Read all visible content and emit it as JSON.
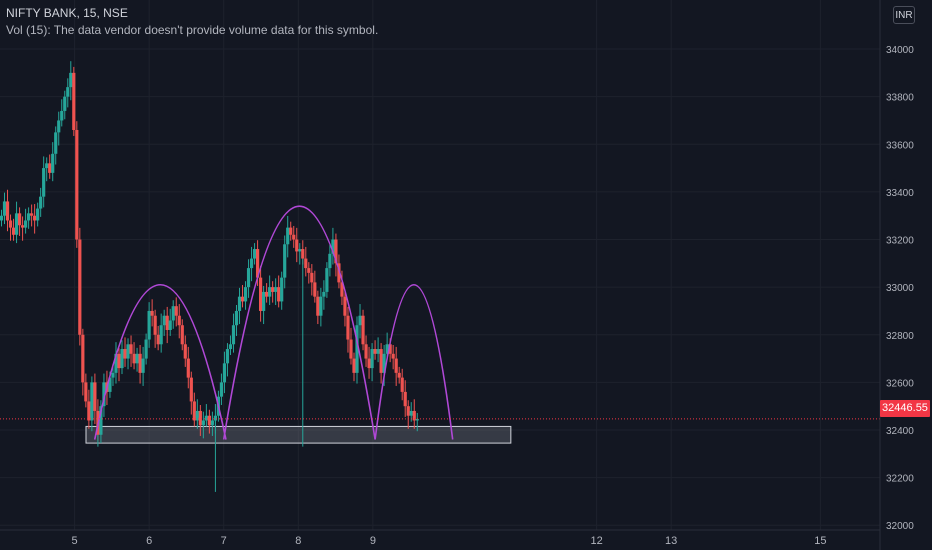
{
  "header": {
    "symbol_line": "NIFTY BANK, 15, NSE",
    "volume_note": "Vol (15): The data vendor doesn't provide volume data for this symbol.",
    "currency": "INR"
  },
  "last_price": {
    "label": "32446.55",
    "value": 32446.55,
    "color": "#f23645"
  },
  "colors": {
    "background": "#131722",
    "grid": "#1e222d",
    "up": "#26a69a",
    "down": "#ef5350",
    "arc": "#b048d6",
    "zone_fill": "#787b86",
    "zone_border": "#d1d4dc",
    "axis_text": "#b2b5be"
  },
  "chart_data": {
    "type": "candlestick",
    "title": "",
    "xlabel": "",
    "ylabel": "",
    "ylim": [
      31980,
      34080
    ],
    "xlim": [
      4.0,
      15.8
    ],
    "y_ticks": [
      32000,
      32200,
      32400,
      32600,
      32800,
      33000,
      33200,
      33400,
      33600,
      33800,
      34000
    ],
    "x_ticks": [
      {
        "value": 5,
        "label": "5"
      },
      {
        "value": 6,
        "label": "6"
      },
      {
        "value": 7,
        "label": "7"
      },
      {
        "value": 8,
        "label": "8"
      },
      {
        "value": 9,
        "label": "9"
      },
      {
        "value": 12,
        "label": "12"
      },
      {
        "value": 13,
        "label": "13"
      },
      {
        "value": 15,
        "label": "15"
      }
    ],
    "x_unit": "day",
    "bar_step": 0.0404,
    "first_bar": 4.02,
    "closes": [
      33300,
      33360,
      33280,
      33250,
      33220,
      33310,
      33260,
      33250,
      33280,
      33310,
      33300,
      33280,
      33330,
      33380,
      33500,
      33520,
      33480,
      33560,
      33650,
      33700,
      33740,
      33800,
      33840,
      33900,
      33660,
      33200,
      32800,
      32600,
      32520,
      32440,
      32600,
      32480,
      32380,
      32500,
      32600,
      32560,
      32620,
      32640,
      32720,
      32660,
      32740,
      32700,
      32760,
      32720,
      32680,
      32720,
      32640,
      32700,
      32780,
      32900,
      32880,
      32800,
      32760,
      32840,
      32880,
      32820,
      32860,
      32920,
      32880,
      32840,
      32760,
      32700,
      32620,
      32520,
      32440,
      32480,
      32420,
      32440,
      32460,
      32420,
      32440,
      32460,
      32540,
      32600,
      32680,
      32740,
      32760,
      32840,
      32900,
      32960,
      32940,
      33000,
      33080,
      33120,
      33160,
      33040,
      32900,
      32980,
      32960,
      33000,
      32980,
      33000,
      32940,
      33040,
      33180,
      33250,
      33220,
      33200,
      33150,
      33160,
      33120,
      33080,
      33060,
      33020,
      32960,
      32880,
      32960,
      32980,
      33080,
      33140,
      33200,
      33100,
      33020,
      32960,
      32880,
      32780,
      32700,
      32640,
      32840,
      32880,
      32760,
      32700,
      32660,
      32740,
      32720,
      32740,
      32640,
      32720,
      32760,
      32720,
      32700,
      32640,
      32620,
      32560,
      32500,
      32460,
      32480,
      32440,
      32446.55
    ],
    "arcs": [
      {
        "start": 5.27,
        "end": 7.03,
        "peak": 33010
      },
      {
        "start": 7.0,
        "end": 9.03,
        "peak": 33340
      },
      {
        "start": 9.03,
        "end": 10.07,
        "peak": 33010
      }
    ],
    "support_zone": {
      "x_start": 4.0,
      "x_end": 10.85,
      "y_low": 32345,
      "y_high": 32415
    }
  }
}
